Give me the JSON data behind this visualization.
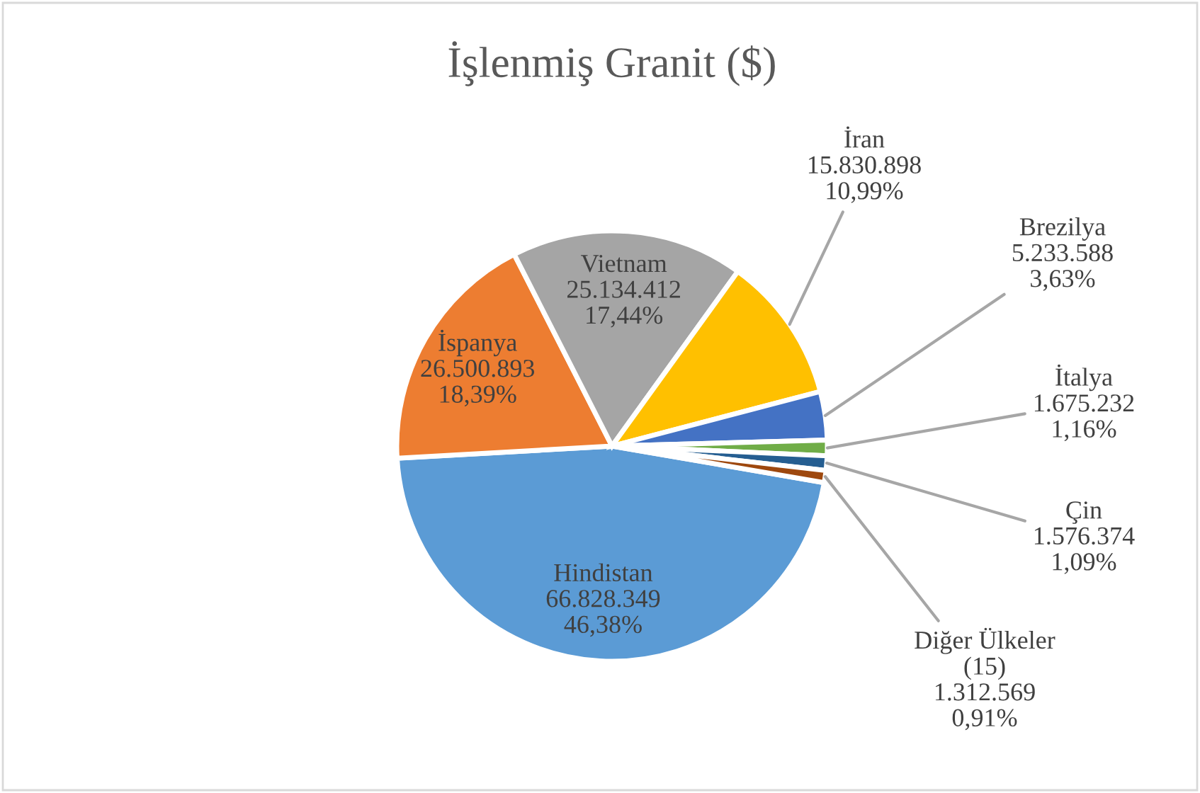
{
  "chart_data": {
    "type": "pie",
    "title": "İşlenmiş Granit ($)",
    "categories": [
      "Hindistan",
      "İspanya",
      "Vietnam",
      "İran",
      "Brezilya",
      "İtalya",
      "Çin",
      "Diğer Ülkeler\n(15)"
    ],
    "values": [
      66828349,
      26500893,
      25134412,
      15830898,
      5233588,
      1675232,
      1576374,
      1312569
    ],
    "value_labels": [
      "66.828.349\n46,38%",
      "26.500.893\n18,39%",
      "25.134.412\n17,44%",
      "15.830.898\n10,99%",
      "5.233.588\n3,63%",
      "1.675.232\n1,16%",
      "1.576.374\n1,09%",
      "1.312.569\n0,91%"
    ],
    "colors": [
      "#5b9bd5",
      "#ed7d31",
      "#a5a5a5",
      "#ffc000",
      "#4472c4",
      "#70ad47",
      "#255e91",
      "#9e480e"
    ],
    "legend": false
  }
}
